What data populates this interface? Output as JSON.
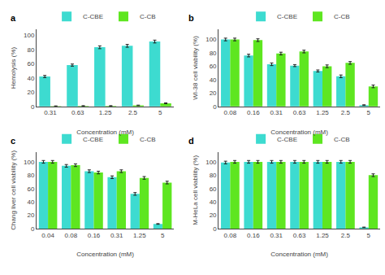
{
  "chart_data": [
    {
      "type": "bar",
      "title": "a",
      "xlabel": "Concentration (mM)",
      "ylabel": "Hemolysis (%)",
      "categories": [
        "0.31",
        "0.63",
        "1.25",
        "2.5",
        "5"
      ],
      "series": [
        {
          "name": "C-CBE",
          "color": "#3DDBD0",
          "values": [
            42,
            58,
            83,
            85,
            91
          ],
          "errors": [
            1.5,
            1.5,
            2.0,
            2.0,
            2.0
          ]
        },
        {
          "name": "C-CB",
          "color": "#5EE620",
          "values": [
            0.5,
            0.8,
            0.8,
            1.5,
            4.5
          ],
          "errors": [
            0.3,
            0.3,
            0.3,
            0.4,
            0.6
          ]
        }
      ],
      "ylim": [
        0,
        108
      ],
      "yticks": [
        0,
        20,
        40,
        60,
        80,
        100
      ],
      "grid": false,
      "legend": "top"
    },
    {
      "type": "bar",
      "title": "b",
      "xlabel": "Concentration (mM)",
      "ylabel": "WI-38 cell viability (%)",
      "categories": [
        "0.08",
        "0.16",
        "0.31",
        "0.63",
        "1.25",
        "2.5",
        "5"
      ],
      "series": [
        {
          "name": "C-CBE",
          "color": "#3DDBD0",
          "values": [
            100,
            76,
            63,
            61,
            53,
            45,
            2
          ],
          "errors": [
            2.0,
            2.0,
            2.0,
            1.5,
            1.5,
            2.0,
            0.5
          ]
        },
        {
          "name": "C-CB",
          "color": "#5EE620",
          "values": [
            100,
            99,
            79,
            82,
            60,
            65,
            30
          ],
          "errors": [
            2.0,
            2.0,
            2.0,
            2.0,
            2.0,
            2.0,
            2.0
          ]
        }
      ],
      "ylim": [
        0,
        115
      ],
      "yticks": [
        0,
        20,
        40,
        60,
        80,
        100
      ],
      "grid": false,
      "legend": "top"
    },
    {
      "type": "bar",
      "title": "c",
      "xlabel": "Concentration (mM)",
      "ylabel": "Chang liver cell viability (%)",
      "categories": [
        "0.04",
        "0.08",
        "0.16",
        "0.31",
        "1.25",
        "5"
      ],
      "series": [
        {
          "name": "C-CBE",
          "color": "#3DDBD0",
          "values": [
            100,
            94,
            86,
            77,
            52,
            7
          ],
          "errors": [
            2.0,
            2.0,
            2.0,
            2.0,
            2.0,
            0.5
          ]
        },
        {
          "name": "C-CB",
          "color": "#5EE620",
          "values": [
            100,
            95,
            84,
            86,
            76,
            69
          ],
          "errors": [
            2.0,
            2.0,
            2.0,
            2.0,
            2.0,
            2.0
          ]
        }
      ],
      "ylim": [
        0,
        115
      ],
      "yticks": [
        0,
        20,
        40,
        60,
        80,
        100
      ],
      "grid": false,
      "legend": "top"
    },
    {
      "type": "bar",
      "title": "d",
      "xlabel": "Concentration (mM)",
      "ylabel": "M-HeLa cell viability (%)",
      "categories": [
        "0.08",
        "0.16",
        "0.31",
        "0.63",
        "1.25",
        "2.5",
        "5"
      ],
      "series": [
        {
          "name": "C-CBE",
          "color": "#3DDBD0",
          "values": [
            99,
            100,
            100,
            100,
            100,
            100,
            2
          ],
          "errors": [
            2.0,
            2.0,
            2.0,
            2.0,
            2.0,
            2.0,
            0.3
          ]
        },
        {
          "name": "C-CB",
          "color": "#5EE620",
          "values": [
            100,
            100,
            100,
            100,
            100,
            100,
            80
          ],
          "errors": [
            2.0,
            2.0,
            2.0,
            2.0,
            2.0,
            2.0,
            2.0
          ]
        }
      ],
      "ylim": [
        0,
        115
      ],
      "yticks": [
        0,
        20,
        40,
        60,
        80,
        100
      ],
      "grid": false,
      "legend": "top"
    }
  ]
}
